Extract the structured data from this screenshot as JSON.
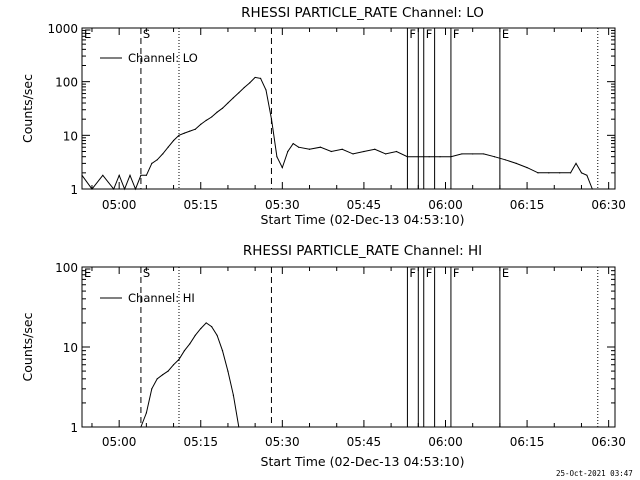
{
  "footer_timestamp": "25-Oct-2021 03:47",
  "chart_data": [
    {
      "type": "line",
      "title": "RHESSI PARTICLE_RATE Channel: LO",
      "xlabel": "Start Time (02-Dec-13 04:53:10)",
      "ylabel": "Counts/sec",
      "yscale": "log",
      "ylim": [
        1,
        1000
      ],
      "xlim": [
        "04:53:10",
        "06:31:10"
      ],
      "grid": false,
      "legend_position": "top-left",
      "x_ticks": [
        "05:00",
        "05:15",
        "05:30",
        "05:45",
        "06:00",
        "06:15",
        "06:30"
      ],
      "y_ticks": [
        "1",
        "10",
        "100",
        "1000"
      ],
      "series": [
        {
          "name": "Channel: LO",
          "x": [
            "04:53:10",
            "04:55",
            "04:57",
            "04:59",
            "05:00",
            "05:01",
            "05:02",
            "05:03",
            "05:04",
            "05:05",
            "05:06",
            "05:07",
            "05:08",
            "05:09",
            "05:10",
            "05:11",
            "05:12",
            "05:13",
            "05:14",
            "05:15",
            "05:16",
            "05:17",
            "05:18",
            "05:19",
            "05:20",
            "05:21",
            "05:22",
            "05:23",
            "05:24",
            "05:25",
            "05:26",
            "05:27",
            "05:28",
            "05:29",
            "05:30",
            "05:31",
            "05:32",
            "05:33",
            "05:35",
            "05:37",
            "05:39",
            "05:41",
            "05:43",
            "05:45",
            "05:47",
            "05:49",
            "05:51",
            "05:53",
            "05:55",
            "05:57",
            "05:59",
            "06:01",
            "06:03",
            "06:05",
            "06:07",
            "06:09",
            "06:11",
            "06:13",
            "06:15",
            "06:17",
            "06:19",
            "06:21",
            "06:23",
            "06:24",
            "06:25",
            "06:26",
            "06:27"
          ],
          "y": [
            1.8,
            1,
            1.8,
            1,
            1.8,
            1,
            1.8,
            1,
            1.8,
            1.8,
            3,
            3.5,
            4.5,
            6,
            8,
            10,
            11,
            12,
            13,
            16,
            19,
            22,
            27,
            32,
            40,
            50,
            62,
            78,
            95,
            120,
            115,
            70,
            20,
            4,
            2.5,
            5,
            7,
            6,
            5.5,
            6,
            5,
            5.5,
            4.5,
            5,
            5.5,
            4.5,
            5,
            4,
            4,
            4,
            4,
            4,
            4.5,
            4.5,
            4.5,
            4,
            3.5,
            3,
            2.5,
            2,
            2,
            2,
            2,
            3,
            2,
            1.8,
            1
          ]
        }
      ],
      "markers": [
        {
          "label": "E",
          "x": "04:53:10",
          "style": "letter"
        },
        {
          "label": "S",
          "x": "05:04",
          "style": "dashed"
        },
        {
          "label": "",
          "x": "05:11",
          "style": "dotted"
        },
        {
          "label": "",
          "x": "05:28",
          "style": "dashed"
        },
        {
          "label": "F",
          "x": "05:53",
          "style": "solid"
        },
        {
          "label": "",
          "x": "05:55",
          "style": "solid"
        },
        {
          "label": "F",
          "x": "05:56",
          "style": "solid"
        },
        {
          "label": "",
          "x": "05:58",
          "style": "solid"
        },
        {
          "label": "F",
          "x": "06:01",
          "style": "solid"
        },
        {
          "label": "E",
          "x": "06:10",
          "style": "solid"
        },
        {
          "label": "",
          "x": "06:28",
          "style": "dotted"
        }
      ]
    },
    {
      "type": "line",
      "title": "RHESSI PARTICLE_RATE Channel: HI",
      "xlabel": "Start Time (02-Dec-13 04:53:10)",
      "ylabel": "Counts/sec",
      "yscale": "log",
      "ylim": [
        1,
        100
      ],
      "xlim": [
        "04:53:10",
        "06:31:10"
      ],
      "grid": false,
      "legend_position": "top-left",
      "x_ticks": [
        "05:00",
        "05:15",
        "05:30",
        "05:45",
        "06:00",
        "06:15",
        "06:30"
      ],
      "y_ticks": [
        "1",
        "10",
        "100"
      ],
      "series": [
        {
          "name": "Channel: HI",
          "x": [
            "05:04",
            "05:05",
            "05:06",
            "05:07",
            "05:08",
            "05:09",
            "05:10",
            "05:11",
            "05:12",
            "05:13",
            "05:14",
            "05:15",
            "05:16",
            "05:17",
            "05:18",
            "05:19",
            "05:20",
            "05:21",
            "05:22"
          ],
          "y": [
            1,
            1.5,
            3,
            4,
            4.5,
            5,
            6,
            7,
            9,
            11,
            14,
            17,
            20,
            18,
            14,
            9,
            5,
            2.5,
            1
          ]
        }
      ],
      "markers": [
        {
          "label": "E",
          "x": "04:53:10",
          "style": "letter"
        },
        {
          "label": "S",
          "x": "05:04",
          "style": "dashed"
        },
        {
          "label": "",
          "x": "05:11",
          "style": "dotted"
        },
        {
          "label": "",
          "x": "05:28",
          "style": "dashed"
        },
        {
          "label": "F",
          "x": "05:53",
          "style": "solid"
        },
        {
          "label": "",
          "x": "05:55",
          "style": "solid"
        },
        {
          "label": "F",
          "x": "05:56",
          "style": "solid"
        },
        {
          "label": "",
          "x": "05:58",
          "style": "solid"
        },
        {
          "label": "F",
          "x": "06:01",
          "style": "solid"
        },
        {
          "label": "E",
          "x": "06:10",
          "style": "solid"
        },
        {
          "label": "",
          "x": "06:28",
          "style": "dotted"
        }
      ]
    }
  ]
}
